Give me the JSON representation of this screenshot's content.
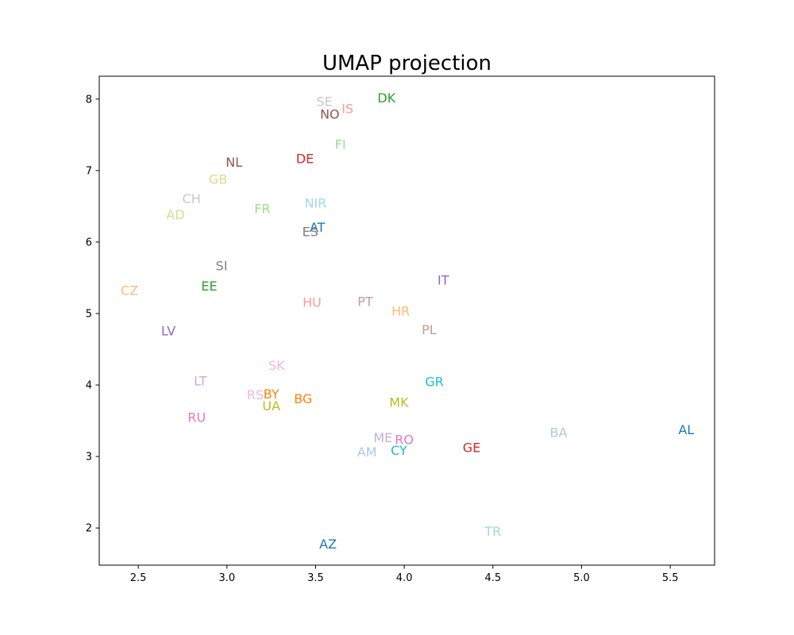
{
  "chart_data": {
    "type": "scatter",
    "title": "UMAP projection",
    "xlabel": "",
    "ylabel": "",
    "xlim": [
      2.28,
      5.75
    ],
    "ylim": [
      1.48,
      8.32
    ],
    "xticks": [
      2.5,
      3.0,
      3.5,
      4.0,
      4.5,
      5.0,
      5.5
    ],
    "xtick_labels": [
      "2.5",
      "3.0",
      "3.5",
      "4.0",
      "4.5",
      "5.0",
      "5.5"
    ],
    "yticks": [
      2,
      3,
      4,
      5,
      6,
      7,
      8
    ],
    "ytick_labels": [
      "2",
      "3",
      "4",
      "5",
      "6",
      "7",
      "8"
    ],
    "grid": false,
    "points": [
      {
        "label": "SE",
        "x": 3.55,
        "y": 7.97,
        "color": "#c7c7c7"
      },
      {
        "label": "DK",
        "x": 3.9,
        "y": 8.02,
        "color": "#2ca02c"
      },
      {
        "label": "IS",
        "x": 3.68,
        "y": 7.87,
        "color": "#ff9896"
      },
      {
        "label": "NO",
        "x": 3.58,
        "y": 7.79,
        "color": "#8c564b"
      },
      {
        "label": "FI",
        "x": 3.64,
        "y": 7.37,
        "color": "#98df8a"
      },
      {
        "label": "NL",
        "x": 3.04,
        "y": 7.12,
        "color": "#8c564b"
      },
      {
        "label": "DE",
        "x": 3.44,
        "y": 7.17,
        "color": "#d62728"
      },
      {
        "label": "GB",
        "x": 2.95,
        "y": 6.88,
        "color": "#dbdb8d"
      },
      {
        "label": "CH",
        "x": 2.8,
        "y": 6.61,
        "color": "#c7c7c7"
      },
      {
        "label": "AD",
        "x": 2.71,
        "y": 6.39,
        "color": "#dbdb8d"
      },
      {
        "label": "FR",
        "x": 3.2,
        "y": 6.47,
        "color": "#98df8a"
      },
      {
        "label": "NIR",
        "x": 3.5,
        "y": 6.55,
        "color": "#9edae5"
      },
      {
        "label": "AT",
        "x": 3.51,
        "y": 6.21,
        "color": "#1f77b4"
      },
      {
        "label": "ES",
        "x": 3.47,
        "y": 6.15,
        "color": "#7f7f7f"
      },
      {
        "label": "SI",
        "x": 2.97,
        "y": 5.67,
        "color": "#7f7f7f"
      },
      {
        "label": "CZ",
        "x": 2.45,
        "y": 5.33,
        "color": "#ffbb78"
      },
      {
        "label": "EE",
        "x": 2.9,
        "y": 5.39,
        "color": "#2ca02c"
      },
      {
        "label": "IT",
        "x": 4.22,
        "y": 5.47,
        "color": "#9467bd"
      },
      {
        "label": "HU",
        "x": 3.48,
        "y": 5.16,
        "color": "#ff9896"
      },
      {
        "label": "PT",
        "x": 3.78,
        "y": 5.17,
        "color": "#c49c94"
      },
      {
        "label": "HR",
        "x": 3.98,
        "y": 5.04,
        "color": "#ffbb78"
      },
      {
        "label": "PL",
        "x": 4.14,
        "y": 4.78,
        "color": "#c49c94"
      },
      {
        "label": "LV",
        "x": 2.67,
        "y": 4.76,
        "color": "#9467bd"
      },
      {
        "label": "SK",
        "x": 3.28,
        "y": 4.28,
        "color": "#f7b6d2"
      },
      {
        "label": "LT",
        "x": 2.85,
        "y": 4.06,
        "color": "#c5b0d5"
      },
      {
        "label": "GR",
        "x": 4.17,
        "y": 4.05,
        "color": "#17becf"
      },
      {
        "label": "RS",
        "x": 3.16,
        "y": 3.87,
        "color": "#f7b6d2"
      },
      {
        "label": "BY",
        "x": 3.25,
        "y": 3.88,
        "color": "#ff7f0e"
      },
      {
        "label": "BG",
        "x": 3.43,
        "y": 3.81,
        "color": "#ff7f0e"
      },
      {
        "label": "UA",
        "x": 3.25,
        "y": 3.71,
        "color": "#bcbd22"
      },
      {
        "label": "MK",
        "x": 3.97,
        "y": 3.76,
        "color": "#bcbd22"
      },
      {
        "label": "RU",
        "x": 2.83,
        "y": 3.55,
        "color": "#e377c2"
      },
      {
        "label": "BA",
        "x": 4.87,
        "y": 3.34,
        "color": "#aec7e8"
      },
      {
        "label": "AL",
        "x": 5.59,
        "y": 3.38,
        "color": "#1f77b4"
      },
      {
        "label": "ME",
        "x": 3.88,
        "y": 3.27,
        "color": "#c5b0d5"
      },
      {
        "label": "RO",
        "x": 4.0,
        "y": 3.24,
        "color": "#e377c2"
      },
      {
        "label": "GE",
        "x": 4.38,
        "y": 3.13,
        "color": "#d62728"
      },
      {
        "label": "AM",
        "x": 3.79,
        "y": 3.07,
        "color": "#aec7e8"
      },
      {
        "label": "CY",
        "x": 3.97,
        "y": 3.09,
        "color": "#17becf"
      },
      {
        "label": "TR",
        "x": 4.5,
        "y": 1.96,
        "color": "#9edae5"
      },
      {
        "label": "AZ",
        "x": 3.57,
        "y": 1.78,
        "color": "#1f77b4"
      }
    ]
  }
}
